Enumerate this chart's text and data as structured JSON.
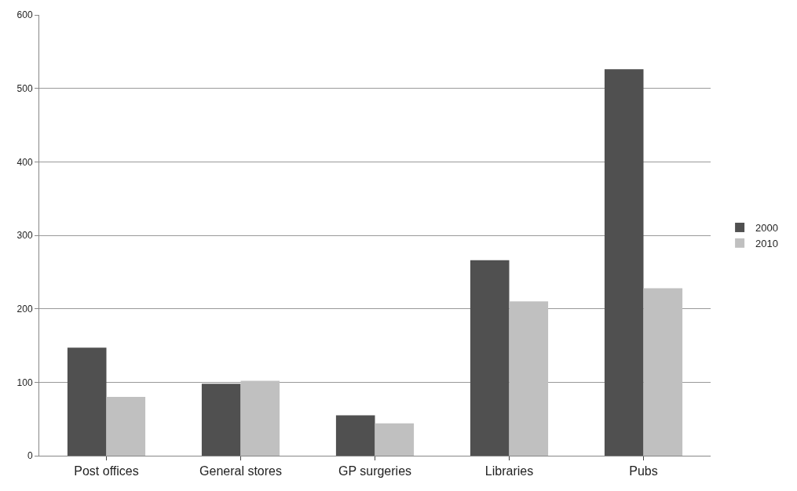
{
  "chart_data": {
    "type": "bar",
    "categories": [
      "Post offices",
      "General stores",
      "GP surgeries",
      "Libraries",
      "Pubs"
    ],
    "series": [
      {
        "name": "2000",
        "color": "#505050",
        "values": [
          147,
          98,
          55,
          266,
          526
        ]
      },
      {
        "name": "2010",
        "color": "#c0c0c0",
        "values": [
          80,
          102,
          44,
          210,
          228
        ]
      }
    ],
    "ylim": [
      0,
      600
    ],
    "yticks": [
      0,
      100,
      200,
      300,
      400,
      500,
      600
    ],
    "grid": "y",
    "legend": "right"
  }
}
